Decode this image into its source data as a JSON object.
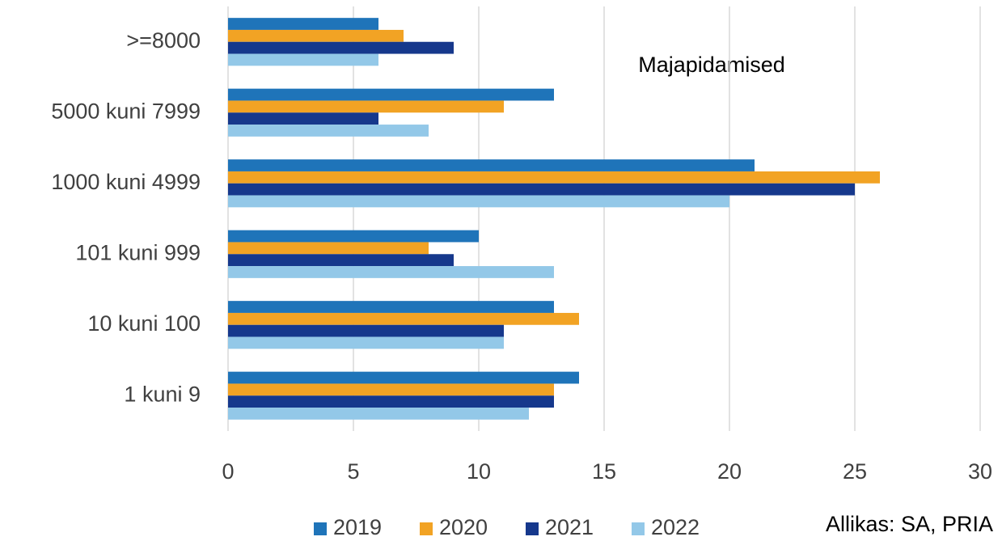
{
  "chart_data": {
    "type": "bar",
    "orientation": "horizontal",
    "annotation": "Majapidamised",
    "source": "Allikas: SA, PRIA",
    "categories": [
      ">=8000",
      "5000 kuni 7999",
      "1000 kuni 4999",
      "101 kuni 999",
      "10 kuni 100",
      "1 kuni 9"
    ],
    "series": [
      {
        "name": "2019",
        "color": "#1f74b9",
        "values": [
          6,
          13,
          21,
          10,
          13,
          14
        ]
      },
      {
        "name": "2020",
        "color": "#f2a324",
        "values": [
          7,
          11,
          26,
          8,
          14,
          13
        ]
      },
      {
        "name": "2021",
        "color": "#16388c",
        "values": [
          9,
          6,
          25,
          9,
          11,
          13
        ]
      },
      {
        "name": "2022",
        "color": "#93c8e8",
        "values": [
          6,
          8,
          20,
          13,
          11,
          12
        ]
      }
    ],
    "xlim": [
      0,
      30
    ],
    "xticks": [
      0,
      5,
      10,
      15,
      20,
      25,
      30
    ],
    "grid": true,
    "legend": "bottom"
  }
}
